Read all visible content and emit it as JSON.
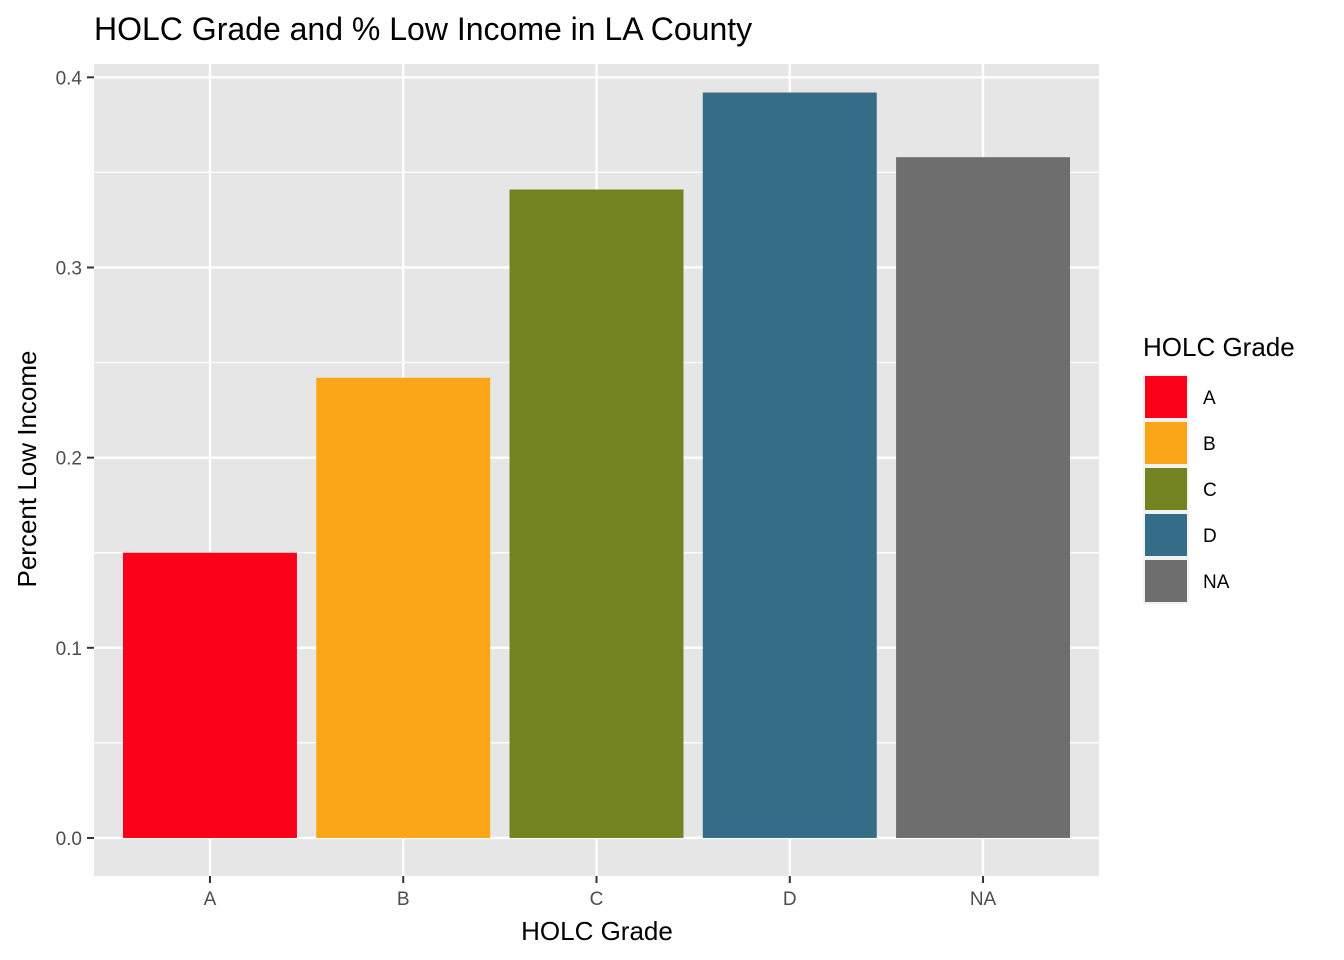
{
  "chart_data": {
    "type": "bar",
    "title": "HOLC Grade and % Low Income in LA County",
    "xlabel": "HOLC Grade",
    "ylabel": "Percent Low Income",
    "categories": [
      "A",
      "B",
      "C",
      "D",
      "NA"
    ],
    "values": [
      0.15,
      0.242,
      0.341,
      0.392,
      0.358
    ],
    "colors": [
      "#FB0019",
      "#FBA616",
      "#728320",
      "#356C87",
      "#6E6E6E"
    ],
    "ylim": [
      -0.02,
      0.407
    ],
    "yticks": [
      0.0,
      0.1,
      0.2,
      0.3,
      0.4
    ],
    "ytick_labels": [
      "0.0",
      "0.1",
      "0.2",
      "0.3",
      "0.4"
    ],
    "grid": true,
    "panel_background": "#E6E6E6",
    "gridline_color": "#FFFFFF",
    "legend": {
      "title": "HOLC Grade",
      "position": "right",
      "entries": [
        "A",
        "B",
        "C",
        "D",
        "NA"
      ]
    }
  }
}
